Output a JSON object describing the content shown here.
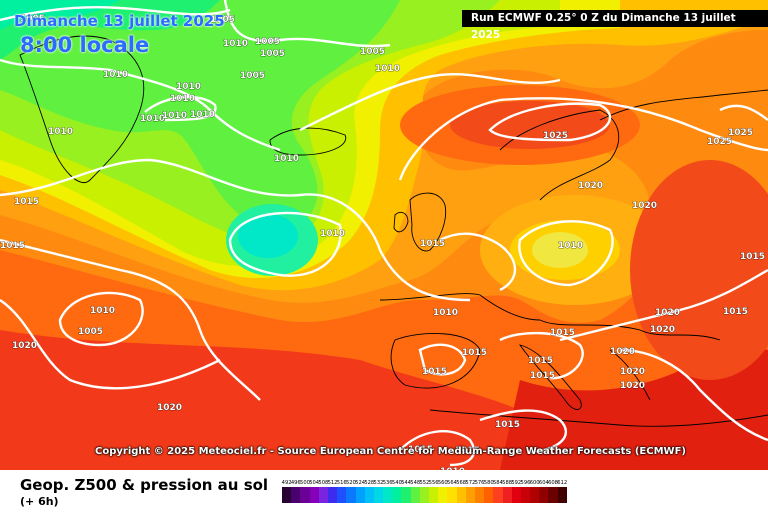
{
  "header": {
    "date": "Dimanche 13 juillet 2025",
    "time": "8:00 locale",
    "run": "Run ECMWF 0.25° 0 Z du Dimanche 13 juillet 2025"
  },
  "copyright": "Copyright © 2025 Meteociel.fr - Source European Centre for Medium-Range Weather Forecasts (ECMWF)",
  "footer": {
    "title": "Geop. Z500 & pression au sol",
    "step": "(+ 6h)"
  },
  "colorbar": {
    "ticks": [
      "492",
      "496",
      "500",
      "504",
      "508",
      "512",
      "516",
      "520",
      "524",
      "528",
      "532",
      "536",
      "540",
      "544",
      "548",
      "552",
      "556",
      "560",
      "564",
      "568",
      "572",
      "576",
      "580",
      "584",
      "588",
      "592",
      "596",
      "600",
      "604",
      "608",
      "612"
    ],
    "colors": [
      "#2a0034",
      "#4b0070",
      "#6a0096",
      "#8500b8",
      "#7a24e0",
      "#3c2cf0",
      "#1e50ff",
      "#0a78ff",
      "#00a0ff",
      "#00c0f8",
      "#00d8e8",
      "#00e8c8",
      "#00f0a0",
      "#20f070",
      "#60f040",
      "#98f020",
      "#c8f000",
      "#f0f000",
      "#ffe000",
      "#ffc000",
      "#ffa000",
      "#ff8000",
      "#ff6000",
      "#ff4020",
      "#f02020",
      "#e00010",
      "#c80008",
      "#b00000",
      "#900000",
      "#6a0000",
      "#400000"
    ]
  },
  "isobars": [
    {
      "value": "1005",
      "id": "a"
    },
    {
      "value": "1005",
      "id": "b"
    },
    {
      "value": "1005",
      "id": "c"
    },
    {
      "value": "1005",
      "id": "d"
    },
    {
      "value": "1005",
      "id": "e"
    },
    {
      "value": "1005",
      "id": "f"
    },
    {
      "value": "1010",
      "id": "g"
    },
    {
      "value": "1010",
      "id": "h"
    },
    {
      "value": "1010",
      "id": "i"
    },
    {
      "value": "1010",
      "id": "j"
    },
    {
      "value": "1010",
      "id": "k"
    },
    {
      "value": "1010",
      "id": "l"
    },
    {
      "value": "1010",
      "id": "m"
    },
    {
      "value": "1010",
      "id": "n"
    },
    {
      "value": "1010",
      "id": "o"
    },
    {
      "value": "1010",
      "id": "p"
    },
    {
      "value": "1010",
      "id": "q"
    },
    {
      "value": "1010",
      "id": "r"
    },
    {
      "value": "1015",
      "id": "s"
    },
    {
      "value": "1015",
      "id": "t"
    },
    {
      "value": "1015",
      "id": "u"
    },
    {
      "value": "1015",
      "id": "v"
    },
    {
      "value": "1015",
      "id": "w"
    },
    {
      "value": "1015",
      "id": "x"
    },
    {
      "value": "1015",
      "id": "y"
    },
    {
      "value": "1015",
      "id": "z"
    },
    {
      "value": "1015",
      "id": "aa"
    },
    {
      "value": "1020",
      "id": "ab"
    },
    {
      "value": "1020",
      "id": "ac"
    },
    {
      "value": "1020",
      "id": "ad"
    },
    {
      "value": "1020",
      "id": "ae"
    },
    {
      "value": "1020",
      "id": "af"
    },
    {
      "value": "1020",
      "id": "ag"
    },
    {
      "value": "1025",
      "id": "ah"
    },
    {
      "value": "1025",
      "id": "ai"
    },
    {
      "value": "1025",
      "id": "aj"
    },
    {
      "value": "1010",
      "id": "ak"
    },
    {
      "value": "1015",
      "id": "al"
    },
    {
      "value": "1015",
      "id": "am"
    },
    {
      "value": "1010",
      "id": "an"
    },
    {
      "value": "1020",
      "id": "ao"
    },
    {
      "value": "1005",
      "id": "ap"
    },
    {
      "value": "1010",
      "id": "aq"
    },
    {
      "value": "1015",
      "id": "ar"
    },
    {
      "value": "1015",
      "id": "as"
    },
    {
      "value": "1020",
      "id": "at"
    },
    {
      "value": "1020",
      "id": "au"
    }
  ]
}
